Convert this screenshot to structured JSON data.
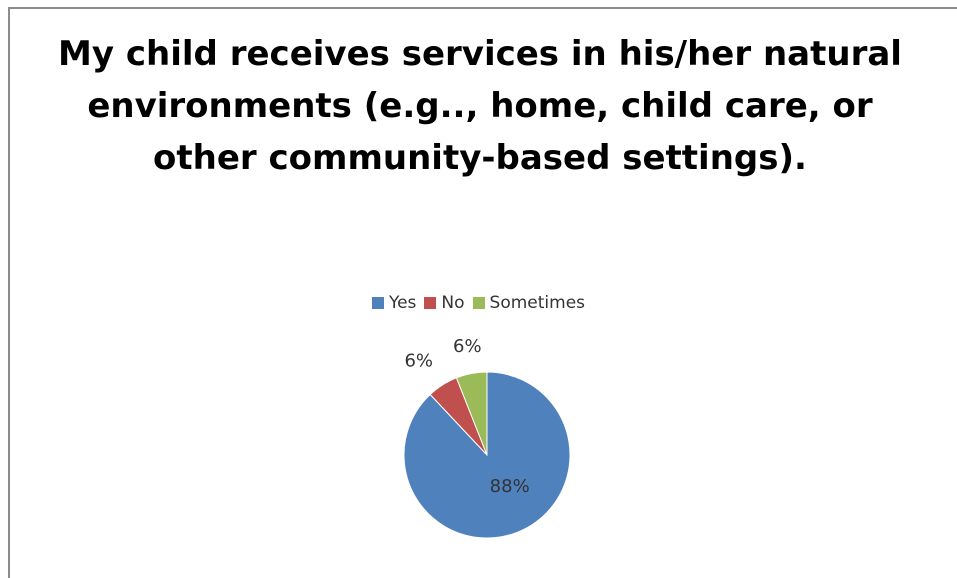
{
  "chart_data": {
    "type": "pie",
    "title": "My child receives services in his/her natural environments (e.g.., home, child care, or other community-based settings).",
    "categories": [
      "Yes",
      "No",
      "Sometimes"
    ],
    "values": [
      88,
      6,
      6
    ],
    "labels": [
      "88%",
      "6%",
      "6%"
    ],
    "colors": [
      "#4f81bd",
      "#c0504d",
      "#9bbb59"
    ],
    "legend_position": "top"
  }
}
